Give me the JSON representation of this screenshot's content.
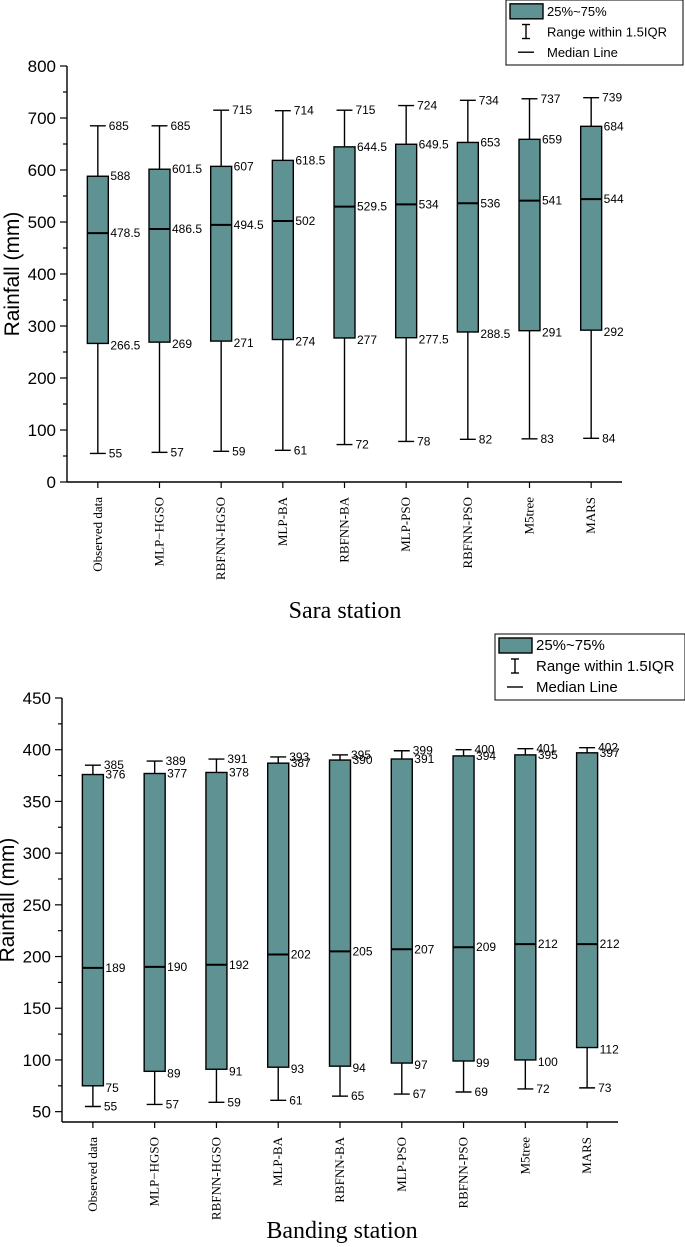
{
  "chart_data": [
    {
      "type": "box",
      "title": "Sara station",
      "ylabel": "Rainfall (mm)",
      "xlabel": "",
      "ylim": [
        0,
        800
      ],
      "yticks": [
        0,
        100,
        200,
        300,
        400,
        500,
        600,
        700,
        800
      ],
      "legend": {
        "position": "top-right",
        "items": [
          "25%~75%",
          "Range within 1.5IQR",
          "Median Line"
        ]
      },
      "categories": [
        "Observed data",
        "MLP−HGSO",
        "RBFNN-HGSO",
        "MLP-BA",
        "RBFNN-BA",
        "MLP-PSO",
        "RBFNN-PSO",
        "M5tree",
        "MARS"
      ],
      "boxes": [
        {
          "min": 55,
          "q1": 266.5,
          "median": 478.5,
          "q3": 588,
          "max": 685
        },
        {
          "min": 57,
          "q1": 269,
          "median": 486.5,
          "q3": 601.5,
          "max": 685
        },
        {
          "min": 59,
          "q1": 271,
          "median": 494.5,
          "q3": 607,
          "max": 715
        },
        {
          "min": 61,
          "q1": 274,
          "median": 502,
          "q3": 618.5,
          "max": 714
        },
        {
          "min": 72,
          "q1": 277,
          "median": 529.5,
          "q3": 644.5,
          "max": 715
        },
        {
          "min": 78,
          "q1": 277.5,
          "median": 534,
          "q3": 649.5,
          "max": 724
        },
        {
          "min": 82,
          "q1": 288.5,
          "median": 536,
          "q3": 653,
          "max": 734
        },
        {
          "min": 83,
          "q1": 291,
          "median": 541,
          "q3": 659,
          "max": 737
        },
        {
          "min": 84,
          "q1": 292,
          "median": 544,
          "q3": 684,
          "max": 739
        }
      ],
      "labels": [
        {
          "min": "55",
          "q1": "266.5",
          "median": "478.5",
          "q3": "588",
          "max": "685"
        },
        {
          "min": "57",
          "q1": "269",
          "median": "486.5",
          "q3": "601.5",
          "max": "685"
        },
        {
          "min": "59",
          "q1": "271",
          "median": "494.5",
          "q3": "607",
          "max": "715"
        },
        {
          "min": "61",
          "q1": "274",
          "median": "502",
          "q3": "618.5",
          "max": "714"
        },
        {
          "min": "72",
          "q1": "277",
          "median": "529.5",
          "q3": "644.5",
          "max": "715"
        },
        {
          "min": "78",
          "q1": "277.5",
          "median": "534",
          "q3": "649.5",
          "max": "724"
        },
        {
          "min": "82",
          "q1": "288.5",
          "median": "536",
          "q3": "653",
          "max": "734"
        },
        {
          "min": "83",
          "q1": "291",
          "median": "541",
          "q3": "659",
          "max": "737"
        },
        {
          "min": "84",
          "q1": "292",
          "median": "544",
          "q3": "684",
          "max": "739"
        }
      ],
      "box_color": "#5f9393"
    },
    {
      "type": "box",
      "title": "Banding station",
      "ylabel": "Rainfall (mm)",
      "xlabel": "",
      "ylim": [
        40,
        450
      ],
      "yticks": [
        50,
        100,
        150,
        200,
        250,
        300,
        350,
        400,
        450
      ],
      "legend": {
        "position": "top-right",
        "items": [
          "25%~75%",
          "Range within 1.5IQR",
          "Median Line"
        ]
      },
      "categories": [
        "Observed data",
        "MLP−HGSO",
        "RBFNN-HGSO",
        "MLP-BA",
        "RBFNN-BA",
        "MLP-PSO",
        "RBFNN-PSO",
        "M5tree",
        "MARS"
      ],
      "boxes": [
        {
          "min": 55,
          "q1": 75,
          "median": 189,
          "q3": 376,
          "max": 385
        },
        {
          "min": 57,
          "q1": 89,
          "median": 190,
          "q3": 377,
          "max": 389
        },
        {
          "min": 59,
          "q1": 91,
          "median": 192,
          "q3": 378,
          "max": 391
        },
        {
          "min": 61,
          "q1": 93,
          "median": 202,
          "q3": 387,
          "max": 393
        },
        {
          "min": 65,
          "q1": 94,
          "median": 205,
          "q3": 390,
          "max": 395
        },
        {
          "min": 67,
          "q1": 97,
          "median": 207,
          "q3": 391,
          "max": 399
        },
        {
          "min": 69,
          "q1": 99,
          "median": 209,
          "q3": 394,
          "max": 400
        },
        {
          "min": 72,
          "q1": 100,
          "median": 212,
          "q3": 395,
          "max": 401
        },
        {
          "min": 73,
          "q1": 112,
          "median": 212,
          "q3": 397,
          "max": 402
        }
      ],
      "labels": [
        {
          "min": "55",
          "q1": "75",
          "median": "189",
          "q3": "376",
          "max": "385"
        },
        {
          "min": "57",
          "q1": "89",
          "median": "190",
          "q3": "377",
          "max": "389"
        },
        {
          "min": "59",
          "q1": "91",
          "median": "192",
          "q3": "378",
          "max": "391"
        },
        {
          "min": "61",
          "q1": "93",
          "median": "202",
          "q3": "387",
          "max": "393"
        },
        {
          "min": "65",
          "q1": "94",
          "median": "205",
          "q3": "390",
          "max": "395"
        },
        {
          "min": "67",
          "q1": "97",
          "median": "207",
          "q3": "391",
          "max": "399"
        },
        {
          "min": "69",
          "q1": "99",
          "median": "209",
          "q3": "394",
          "max": "400"
        },
        {
          "min": "72",
          "q1": "100",
          "median": "212",
          "q3": "395",
          "max": "401"
        },
        {
          "min": "73",
          "q1": "112",
          "median": "212",
          "q3": "397",
          "max": "402"
        }
      ],
      "box_color": "#5f9393"
    }
  ]
}
